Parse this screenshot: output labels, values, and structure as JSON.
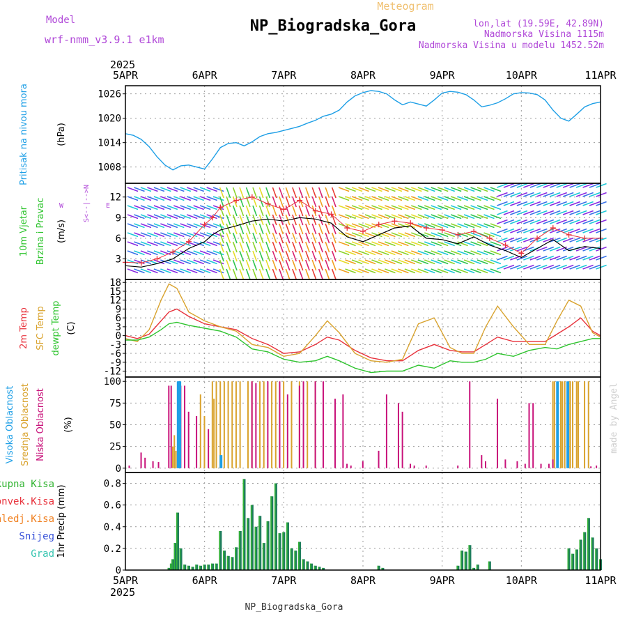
{
  "header": {
    "model_label": "Model",
    "model_name": "wrf-nmm_v3.9.1 e1km",
    "supertitle": "Meteogram",
    "title": "NP_Biogradska_Gora",
    "lonlat": "lon,lat (19.59E, 42.89N)",
    "elev": "Nadmorska Visina 1115m",
    "elev_model": "Nadmorska Visina u modelu 1452.52m",
    "year_top": "2025",
    "year_bottom": "2025",
    "footer": "NP_Biogradska_Gora",
    "credit": "made by Angel"
  },
  "colors": {
    "pressure": "#1e9fe6",
    "wind_speed": "#000000",
    "gust": "#e8323c",
    "t2m": "#e8323c",
    "tsfc": "#d9a32e",
    "td": "#2ec42e",
    "cloud_high": "#1e9fe6",
    "cloud_mid": "#d9a32e",
    "cloud_low": "#c8127a",
    "precip_total": "#35b535",
    "precip_conv": "#e8323c",
    "precip_frz": "#f08020",
    "precip_snow": "#3650d8",
    "precip_grad": "#35c4b0",
    "precip_bar": "#1f7e5c",
    "compass": "#b048d8"
  },
  "chart_data": [
    {
      "type": "line",
      "panel": "pressure",
      "ylabel_lines": [
        "Pritisak na nivou mora",
        "(hPa)"
      ],
      "yticks": [
        1008,
        1014,
        1020,
        1026
      ],
      "ylim": [
        1004,
        1028
      ],
      "xlim": [
        0,
        6
      ],
      "xticks": [
        "5APR",
        "6APR",
        "7APR",
        "8APR",
        "9APR",
        "10APR",
        "11APR"
      ],
      "grid": true,
      "series": [
        {
          "x": [
            0,
            0.1,
            0.2,
            0.3,
            0.4,
            0.5,
            0.6,
            0.7,
            0.8,
            0.9,
            1.0,
            1.1,
            1.2,
            1.3,
            1.4,
            1.5,
            1.6,
            1.7,
            1.8,
            1.9,
            2.0,
            2.1,
            2.2,
            2.3,
            2.4,
            2.5,
            2.6,
            2.7,
            2.8,
            2.9,
            3.0,
            3.1,
            3.2,
            3.3,
            3.4,
            3.5,
            3.6,
            3.7,
            3.8,
            3.9,
            4.0,
            4.1,
            4.2,
            4.3,
            4.4,
            4.5,
            4.6,
            4.7,
            4.8,
            4.9,
            5.0,
            5.1,
            5.2,
            5.3,
            5.4,
            5.5,
            5.6,
            5.7,
            5.8,
            5.9,
            6.0
          ],
          "y": [
            1016.2,
            1015.8,
            1014.8,
            1013.0,
            1010.5,
            1008.5,
            1007.3,
            1008.3,
            1008.5,
            1008.0,
            1007.5,
            1010.0,
            1012.8,
            1013.8,
            1014.0,
            1013.2,
            1014.2,
            1015.5,
            1016.2,
            1016.5,
            1017.0,
            1017.5,
            1018.0,
            1018.8,
            1019.5,
            1020.5,
            1021.0,
            1022.0,
            1024.0,
            1025.5,
            1026.3,
            1026.8,
            1026.6,
            1026.0,
            1024.5,
            1023.3,
            1024.0,
            1023.5,
            1023.0,
            1024.5,
            1026.2,
            1026.6,
            1026.4,
            1025.8,
            1024.5,
            1022.8,
            1023.2,
            1023.8,
            1024.8,
            1026.0,
            1026.3,
            1026.2,
            1025.8,
            1024.5,
            1022.0,
            1020.0,
            1019.3,
            1021.0,
            1022.8,
            1023.6,
            1024.0
          ]
        }
      ]
    },
    {
      "type": "line",
      "panel": "wind",
      "ylabel_lines": [
        "10m Vjetar",
        "Brzina i Pravac",
        "(m/s)"
      ],
      "compass": {
        "n": "N",
        "e": "E",
        "s": "S",
        "w": "W",
        "arrows": "<--|-->"
      },
      "yticks": [
        3,
        6,
        9,
        12
      ],
      "ylim": [
        0,
        14
      ],
      "xlim": [
        0,
        6
      ],
      "grid": true,
      "series": [
        {
          "name": "speed",
          "x": [
            0,
            0.2,
            0.4,
            0.6,
            0.8,
            1.0,
            1.1,
            1.2,
            1.4,
            1.6,
            1.8,
            2.0,
            2.2,
            2.4,
            2.6,
            2.8,
            3.0,
            3.2,
            3.4,
            3.6,
            3.8,
            4.0,
            4.2,
            4.4,
            4.6,
            4.8,
            5.0,
            5.2,
            5.4,
            5.6,
            5.8,
            6.0
          ],
          "y": [
            2.0,
            1.8,
            2.3,
            3.0,
            4.5,
            5.5,
            6.5,
            7.2,
            7.8,
            8.5,
            8.8,
            8.5,
            9.0,
            8.8,
            8.2,
            6.2,
            5.5,
            6.5,
            7.5,
            7.8,
            6.0,
            5.8,
            5.2,
            6.2,
            5.0,
            4.2,
            3.2,
            4.5,
            5.8,
            4.2,
            4.8,
            4.5
          ]
        },
        {
          "name": "gust",
          "x": [
            0,
            0.2,
            0.4,
            0.6,
            0.8,
            1.0,
            1.1,
            1.2,
            1.4,
            1.6,
            1.8,
            2.0,
            2.2,
            2.4,
            2.6,
            2.8,
            3.0,
            3.2,
            3.4,
            3.6,
            3.8,
            4.0,
            4.2,
            4.4,
            4.6,
            4.8,
            5.0,
            5.2,
            5.4,
            5.6,
            5.8,
            6.0
          ],
          "y": [
            2.5,
            2.4,
            3.0,
            4.0,
            5.5,
            8.0,
            9.0,
            10.5,
            11.5,
            12.0,
            11.0,
            10.2,
            11.5,
            10.0,
            9.5,
            7.5,
            7.0,
            8.0,
            8.5,
            8.2,
            7.5,
            7.2,
            6.5,
            7.0,
            6.0,
            5.0,
            3.8,
            6.0,
            7.5,
            6.5,
            6.0,
            6.0
          ]
        }
      ]
    },
    {
      "type": "line",
      "panel": "temperature",
      "ylabel_lines": [
        "2m Temp",
        "SFC Temp",
        "dewpt Temp",
        "(C)"
      ],
      "yticks": [
        -12,
        -9,
        -6,
        -3,
        0,
        3,
        6,
        9,
        12,
        15,
        18
      ],
      "ylim": [
        -14,
        19
      ],
      "xlim": [
        0,
        6
      ],
      "grid": true,
      "series": [
        {
          "name": "2m Temp",
          "x": [
            0,
            0.15,
            0.3,
            0.45,
            0.55,
            0.65,
            0.8,
            1.0,
            1.2,
            1.4,
            1.6,
            1.8,
            2.0,
            2.2,
            2.4,
            2.55,
            2.7,
            2.9,
            3.1,
            3.3,
            3.5,
            3.7,
            3.9,
            4.1,
            4.25,
            4.4,
            4.55,
            4.7,
            4.9,
            5.1,
            5.3,
            5.45,
            5.6,
            5.75,
            5.9,
            6.0
          ],
          "y": [
            0,
            -1,
            0.5,
            5,
            8,
            9,
            6.5,
            4,
            3,
            2,
            -1,
            -3,
            -6,
            -5.5,
            -3,
            -0.5,
            -1.5,
            -5,
            -7.5,
            -8.5,
            -8.5,
            -5,
            -3,
            -5,
            -5.5,
            -5.5,
            -3,
            -0.5,
            -2,
            -2,
            -2,
            0.5,
            3,
            6,
            1.5,
            0
          ]
        },
        {
          "name": "SFC Temp",
          "x": [
            0,
            0.15,
            0.3,
            0.45,
            0.55,
            0.65,
            0.8,
            1.0,
            1.2,
            1.4,
            1.6,
            1.8,
            2.0,
            2.2,
            2.4,
            2.55,
            2.7,
            2.9,
            3.1,
            3.3,
            3.5,
            3.7,
            3.9,
            4.1,
            4.25,
            4.4,
            4.55,
            4.7,
            4.9,
            5.1,
            5.3,
            5.45,
            5.6,
            5.75,
            5.9,
            6.0
          ],
          "y": [
            -1,
            -2,
            2,
            12,
            17.5,
            16,
            8,
            5,
            3,
            1.5,
            -3,
            -4,
            -7,
            -6,
            0,
            5,
            1,
            -6,
            -8.5,
            -9,
            -8,
            4,
            6,
            -4,
            -6,
            -6,
            3,
            10,
            3,
            -3,
            -3,
            5,
            12,
            10,
            1,
            -0.5
          ]
        },
        {
          "name": "dewpt Temp",
          "x": [
            0,
            0.15,
            0.3,
            0.45,
            0.55,
            0.65,
            0.8,
            1.0,
            1.2,
            1.4,
            1.6,
            1.8,
            2.0,
            2.2,
            2.4,
            2.55,
            2.7,
            2.9,
            3.1,
            3.3,
            3.5,
            3.7,
            3.9,
            4.1,
            4.25,
            4.4,
            4.55,
            4.7,
            4.9,
            5.1,
            5.3,
            5.45,
            5.6,
            5.75,
            5.9,
            6.0
          ],
          "y": [
            -1.5,
            -1.5,
            -0.5,
            2,
            4,
            4.5,
            3.5,
            2.5,
            1.5,
            -0.5,
            -4.5,
            -5.5,
            -8,
            -9,
            -8.5,
            -7,
            -8.5,
            -11,
            -12.5,
            -12,
            -12,
            -10,
            -11,
            -8.5,
            -9,
            -9,
            -8,
            -6,
            -7,
            -5,
            -4,
            -4.5,
            -3,
            -2,
            -1,
            -1
          ]
        }
      ]
    },
    {
      "type": "bar",
      "panel": "cloud",
      "ylabel_lines": [
        "Visoka Oblacnost",
        "Srednja Oblacnost",
        "Niska Oblacnost",
        "(%)"
      ],
      "yticks": [
        0,
        25,
        50,
        75,
        100
      ],
      "ylim": [
        -5,
        105
      ],
      "xlim": [
        0,
        6
      ],
      "grid": true,
      "series": [
        {
          "name": "Visoka Oblacnost",
          "x": [
            0.66,
            0.67,
            0.68,
            1.2,
            5.45,
            5.58
          ],
          "y": [
            100,
            100,
            100,
            15,
            100,
            100
          ]
        },
        {
          "name": "Srednja Oblacnost",
          "x": [
            0.6,
            0.62,
            0.64,
            0.95,
            1.0,
            1.1,
            1.12,
            1.15,
            1.2,
            1.25,
            1.3,
            1.35,
            1.4,
            1.45,
            1.55,
            1.6,
            1.7,
            1.75,
            1.85,
            1.9,
            2.0,
            2.1,
            2.2,
            2.3,
            2.4,
            5.4,
            5.42,
            5.5,
            5.52,
            5.55,
            5.6,
            5.62,
            5.65,
            5.7,
            5.72,
            5.8,
            5.85
          ],
          "y": [
            25,
            38,
            20,
            85,
            60,
            100,
            80,
            100,
            100,
            100,
            100,
            100,
            100,
            100,
            100,
            100,
            100,
            100,
            100,
            100,
            100,
            100,
            100,
            100,
            100,
            100,
            100,
            100,
            100,
            100,
            100,
            100,
            100,
            100,
            100,
            100,
            100
          ]
        },
        {
          "name": "Niska Oblacnost",
          "x": [
            0.05,
            0.2,
            0.25,
            0.35,
            0.42,
            0.55,
            0.58,
            0.7,
            0.75,
            0.8,
            0.9,
            1.05,
            1.6,
            1.65,
            1.8,
            1.95,
            2.05,
            2.2,
            2.25,
            2.4,
            2.5,
            2.65,
            2.75,
            2.8,
            2.85,
            3.0,
            3.2,
            3.3,
            3.45,
            3.5,
            3.6,
            3.65,
            3.8,
            4.2,
            4.35,
            4.5,
            4.55,
            4.7,
            4.8,
            4.95,
            5.05,
            5.1,
            5.15,
            5.25,
            5.35,
            5.4,
            5.88,
            5.95
          ],
          "y": [
            3,
            18,
            12,
            8,
            7,
            95,
            95,
            95,
            95,
            65,
            60,
            45,
            100,
            98,
            100,
            100,
            85,
            95,
            100,
            100,
            100,
            80,
            85,
            5,
            3,
            8,
            20,
            85,
            75,
            65,
            5,
            3,
            3,
            3,
            100,
            15,
            8,
            80,
            10,
            8,
            5,
            75,
            75,
            5,
            5,
            10,
            2,
            3
          ]
        }
      ]
    },
    {
      "type": "bar",
      "panel": "precip",
      "ylabel_lines": [
        "1hr Precip (mm)"
      ],
      "legend": [
        "Ukupna Kisa",
        "Konvek.Kisa",
        "Zaledj.Kisa",
        "Snijeg",
        "Grad"
      ],
      "yticks": [
        0,
        0.2,
        0.4,
        0.6,
        0.8
      ],
      "ylim": [
        0,
        0.9
      ],
      "xlim": [
        0,
        6
      ],
      "grid": true,
      "series": [
        {
          "name": "Ukupna Kisa",
          "x": [
            0.55,
            0.58,
            0.6,
            0.63,
            0.66,
            0.7,
            0.75,
            0.8,
            0.85,
            0.9,
            0.95,
            1.0,
            1.05,
            1.1,
            1.15,
            1.2,
            1.25,
            1.3,
            1.35,
            1.4,
            1.45,
            1.5,
            1.55,
            1.6,
            1.65,
            1.7,
            1.75,
            1.8,
            1.85,
            1.9,
            1.95,
            2.0,
            2.05,
            2.1,
            2.15,
            2.2,
            2.25,
            2.3,
            2.35,
            2.4,
            2.45,
            2.5,
            3.2,
            3.25,
            4.2,
            4.25,
            4.3,
            4.35,
            4.4,
            4.45,
            4.6,
            5.6,
            5.65,
            5.7,
            5.75,
            5.8,
            5.85,
            5.9,
            5.95,
            6.0
          ],
          "y": [
            0.02,
            0.06,
            0.1,
            0.25,
            0.53,
            0.2,
            0.05,
            0.04,
            0.03,
            0.05,
            0.04,
            0.05,
            0.05,
            0.06,
            0.06,
            0.36,
            0.18,
            0.13,
            0.12,
            0.21,
            0.36,
            0.84,
            0.48,
            0.6,
            0.4,
            0.5,
            0.25,
            0.45,
            0.68,
            0.8,
            0.34,
            0.35,
            0.44,
            0.2,
            0.18,
            0.26,
            0.1,
            0.08,
            0.06,
            0.04,
            0.03,
            0.02,
            0.04,
            0.02,
            0.04,
            0.18,
            0.17,
            0.23,
            0.02,
            0.05,
            0.08,
            0.2,
            0.15,
            0.19,
            0.28,
            0.35,
            0.48,
            0.3,
            0.2,
            0.1
          ]
        }
      ]
    }
  ]
}
